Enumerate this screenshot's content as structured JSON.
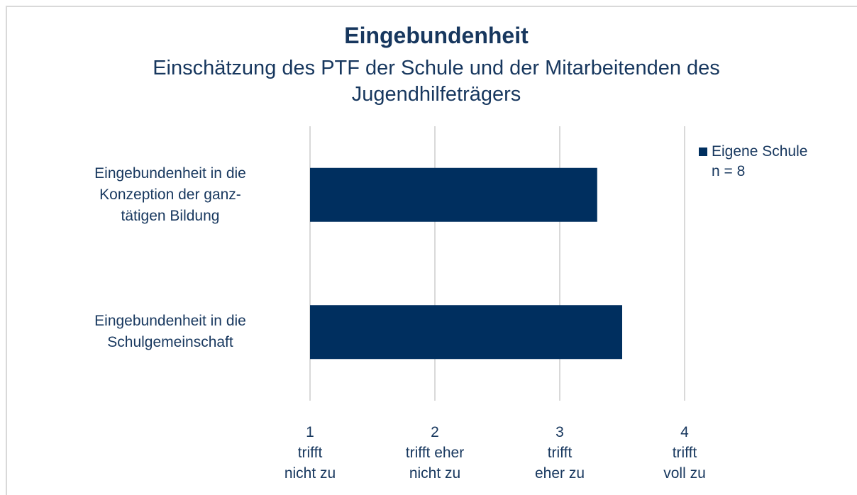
{
  "chart_data": {
    "type": "barh",
    "title": "Eingebundenheit",
    "subtitle": "Einschätzung des PTF der Schule und der Mitarbeitenden des Jugendhilfeträgers",
    "categories": [
      "Eingebundenheit in die\nKonzeption der ganz-\ntätigen Bildung",
      "Eingebundenheit in die\nSchulgemeinschaft"
    ],
    "series": [
      {
        "name": "Eigene Schule\nn = 8",
        "color": "#002f5f",
        "values": [
          3.3,
          3.5
        ]
      }
    ],
    "xlim": [
      1,
      4
    ],
    "xticks": [
      {
        "value": 1,
        "label": "1\ntrifft\nnicht zu"
      },
      {
        "value": 2,
        "label": "2\ntrifft eher\nnicht zu"
      },
      {
        "value": 3,
        "label": "3\ntrifft\neher zu"
      },
      {
        "value": 4,
        "label": "4\ntrifft\nvoll zu"
      }
    ],
    "grid": true,
    "legend": "top-right"
  }
}
